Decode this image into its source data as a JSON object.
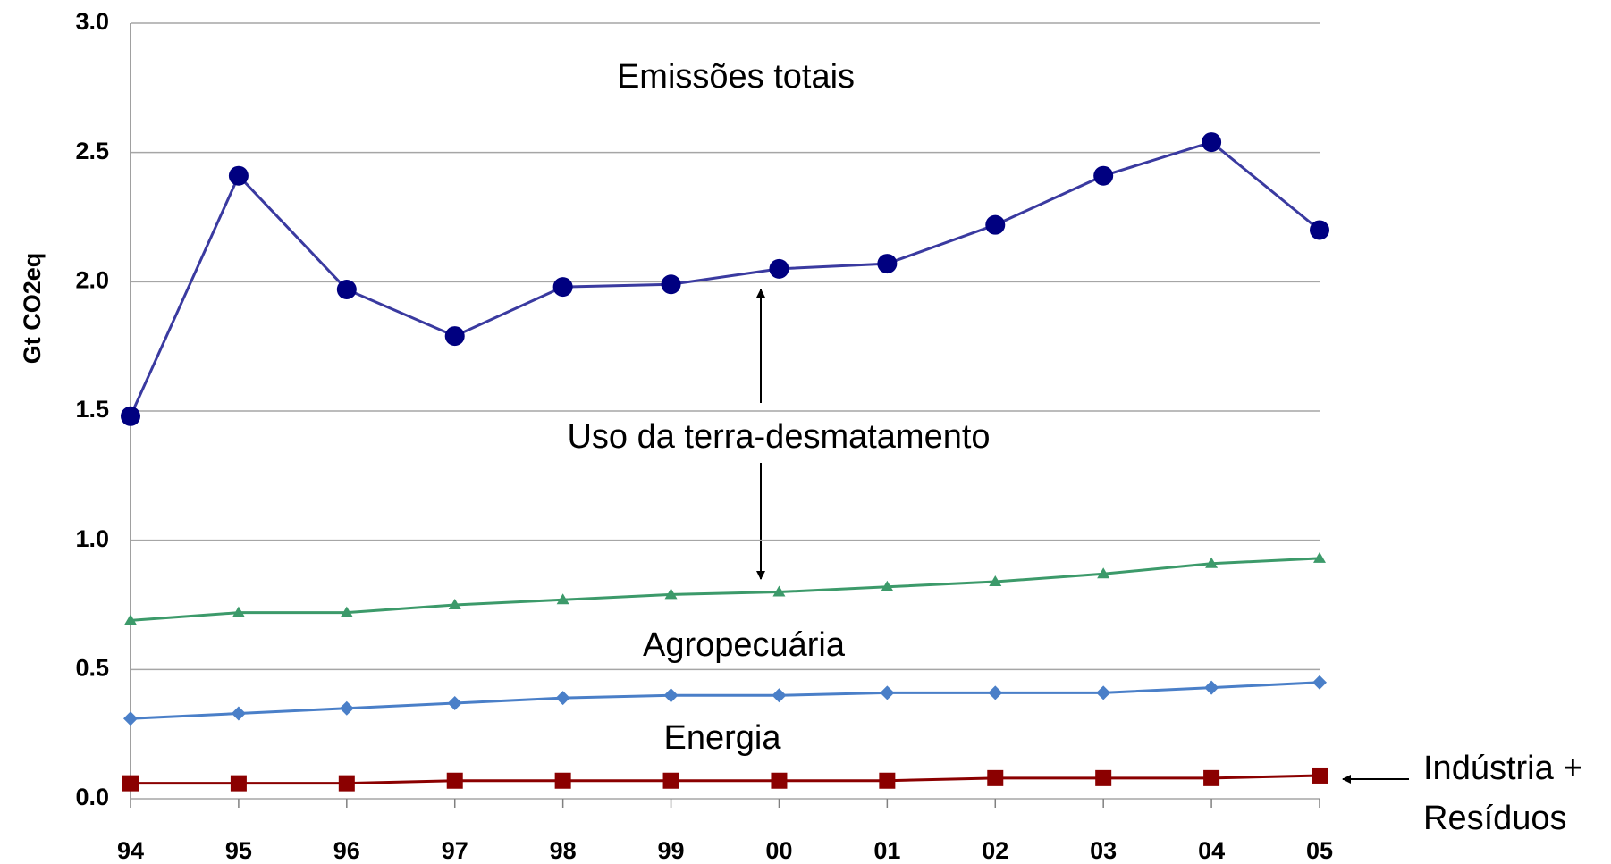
{
  "chart_data": {
    "type": "line",
    "y_label": "Gt CO2eq",
    "categories": [
      "94",
      "95",
      "96",
      "97",
      "98",
      "99",
      "00",
      "01",
      "02",
      "03",
      "04",
      "05"
    ],
    "series": [
      {
        "color": "#000080",
        "line_color": "#3a3aa0",
        "marker": "circle",
        "values": [
          1.48,
          2.41,
          1.97,
          1.79,
          1.98,
          1.99,
          2.05,
          2.07,
          2.22,
          2.41,
          2.54,
          2.2
        ]
      },
      {
        "color": "#3c9a6a",
        "line_color": "#3c9a6a",
        "marker": "triangle",
        "values": [
          0.69,
          0.72,
          0.72,
          0.75,
          0.77,
          0.79,
          0.8,
          0.82,
          0.84,
          0.87,
          0.91,
          0.93
        ]
      },
      {
        "color": "#4a7fc8",
        "line_color": "#4a7fc8",
        "marker": "diamond",
        "values": [
          0.31,
          0.33,
          0.35,
          0.37,
          0.39,
          0.4,
          0.4,
          0.41,
          0.41,
          0.41,
          0.43,
          0.45
        ]
      },
      {
        "color": "#8b0000",
        "line_color": "#8b0000",
        "marker": "square",
        "values": [
          0.06,
          0.06,
          0.06,
          0.07,
          0.07,
          0.07,
          0.07,
          0.07,
          0.08,
          0.08,
          0.08,
          0.09
        ]
      }
    ],
    "annotations": [
      "Emissões totais",
      "Uso da terra-desmatamento",
      "Agropecuária",
      "Energia",
      "Indústria +",
      "Resíduos"
    ],
    "ylim": [
      0,
      3
    ],
    "yticks": [
      {
        "value": 0,
        "label": "0.0"
      },
      0.5,
      {
        "value": 1,
        "label": "1.0"
      },
      1.5,
      {
        "value": 2,
        "label": "2.0"
      },
      {
        "value": 2.5,
        "label": "2.5"
      },
      {
        "value": 3,
        "label": "3.0"
      }
    ],
    "grid": true
  }
}
